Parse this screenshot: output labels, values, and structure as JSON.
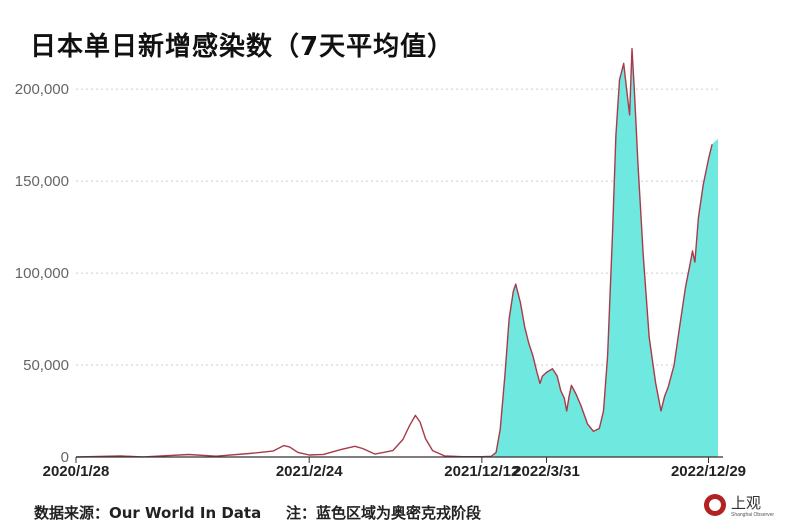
{
  "title": "日本单日新增感染数（7天平均值）",
  "source_text": "数据来源：Our World In Data",
  "note_text": "注：蓝色区域为奥密克戎阶段",
  "logo": {
    "name": "上观",
    "subtitle": "Shanghai Observer",
    "icon": "shangguan-logo-icon"
  },
  "colors": {
    "line": "#a83a4a",
    "omicron_fill": "#6fe8df",
    "grid": "#cccccc"
  },
  "chart_data": {
    "type": "line",
    "title": "日本单日新增感染数（7天平均值）",
    "xlabel": "",
    "ylabel": "",
    "x_range": [
      "2020-01-28",
      "2023-01-14"
    ],
    "ylim": [
      0,
      230000
    ],
    "y_ticks": [
      0,
      50000,
      100000,
      150000,
      200000
    ],
    "y_tick_labels": [
      "0",
      "50,000",
      "100,000",
      "150,000",
      "200,000"
    ],
    "x_tick_labels": [
      "2020/1/28",
      "2021/2/24",
      "2021/12/12",
      "2022/3/31",
      "2022/12/29"
    ],
    "x_tick_dates": [
      "2020-01-28",
      "2021-02-24",
      "2021-12-12",
      "2022-03-31",
      "2022-12-29"
    ],
    "grid": true,
    "highlight": {
      "label": "奥密克戎阶段",
      "start": "2022-01-01",
      "end": "2023-01-14"
    },
    "series": [
      {
        "values": [
          [
            "2020-01-28",
            0
          ],
          [
            "2020-04-12",
            550
          ],
          [
            "2020-05-20",
            40
          ],
          [
            "2020-08-05",
            1350
          ],
          [
            "2020-09-20",
            450
          ],
          [
            "2020-11-15",
            1900
          ],
          [
            "2020-12-25",
            3200
          ],
          [
            "2021-01-12",
            6200
          ],
          [
            "2021-01-22",
            5500
          ],
          [
            "2021-02-05",
            2500
          ],
          [
            "2021-02-24",
            1100
          ],
          [
            "2021-03-20",
            1400
          ],
          [
            "2021-04-20",
            4200
          ],
          [
            "2021-05-12",
            5800
          ],
          [
            "2021-05-25",
            4600
          ],
          [
            "2021-06-15",
            1600
          ],
          [
            "2021-07-15",
            3500
          ],
          [
            "2021-08-01",
            9500
          ],
          [
            "2021-08-12",
            17000
          ],
          [
            "2021-08-22",
            22600
          ],
          [
            "2021-08-30",
            19000
          ],
          [
            "2021-09-08",
            10000
          ],
          [
            "2021-09-20",
            3500
          ],
          [
            "2021-10-10",
            600
          ],
          [
            "2021-11-10",
            150
          ],
          [
            "2021-12-12",
            150
          ],
          [
            "2021-12-28",
            400
          ],
          [
            "2022-01-05",
            2500
          ],
          [
            "2022-01-12",
            15000
          ],
          [
            "2022-01-20",
            45000
          ],
          [
            "2022-01-27",
            75000
          ],
          [
            "2022-02-03",
            90000
          ],
          [
            "2022-02-07",
            94000
          ],
          [
            "2022-02-15",
            84000
          ],
          [
            "2022-02-22",
            71000
          ],
          [
            "2022-03-01",
            62000
          ],
          [
            "2022-03-08",
            55000
          ],
          [
            "2022-03-15",
            46000
          ],
          [
            "2022-03-20",
            40000
          ],
          [
            "2022-03-24",
            44000
          ],
          [
            "2022-03-31",
            46000
          ],
          [
            "2022-04-10",
            48000
          ],
          [
            "2022-04-18",
            44000
          ],
          [
            "2022-04-24",
            36000
          ],
          [
            "2022-04-30",
            32000
          ],
          [
            "2022-05-04",
            25000
          ],
          [
            "2022-05-08",
            33000
          ],
          [
            "2022-05-12",
            39000
          ],
          [
            "2022-05-20",
            34000
          ],
          [
            "2022-05-28",
            28000
          ],
          [
            "2022-06-08",
            18000
          ],
          [
            "2022-06-18",
            14000
          ],
          [
            "2022-06-28",
            15500
          ],
          [
            "2022-07-05",
            25000
          ],
          [
            "2022-07-12",
            55000
          ],
          [
            "2022-07-20",
            120000
          ],
          [
            "2022-07-26",
            175000
          ],
          [
            "2022-08-01",
            205000
          ],
          [
            "2022-08-08",
            214000
          ],
          [
            "2022-08-13",
            200000
          ],
          [
            "2022-08-18",
            186000
          ],
          [
            "2022-08-22",
            222000
          ],
          [
            "2022-08-26",
            200000
          ],
          [
            "2022-09-01",
            160000
          ],
          [
            "2022-09-10",
            110000
          ],
          [
            "2022-09-20",
            65000
          ],
          [
            "2022-10-01",
            40000
          ],
          [
            "2022-10-10",
            25000
          ],
          [
            "2022-10-16",
            33000
          ],
          [
            "2022-10-22",
            38000
          ],
          [
            "2022-11-01",
            50000
          ],
          [
            "2022-11-10",
            70000
          ],
          [
            "2022-11-20",
            92000
          ],
          [
            "2022-11-28",
            105000
          ],
          [
            "2022-12-02",
            112000
          ],
          [
            "2022-12-06",
            106000
          ],
          [
            "2022-12-12",
            130000
          ],
          [
            "2022-12-20",
            148000
          ],
          [
            "2022-12-29",
            162000
          ],
          [
            "2023-01-04",
            170000
          ]
        ]
      }
    ]
  }
}
